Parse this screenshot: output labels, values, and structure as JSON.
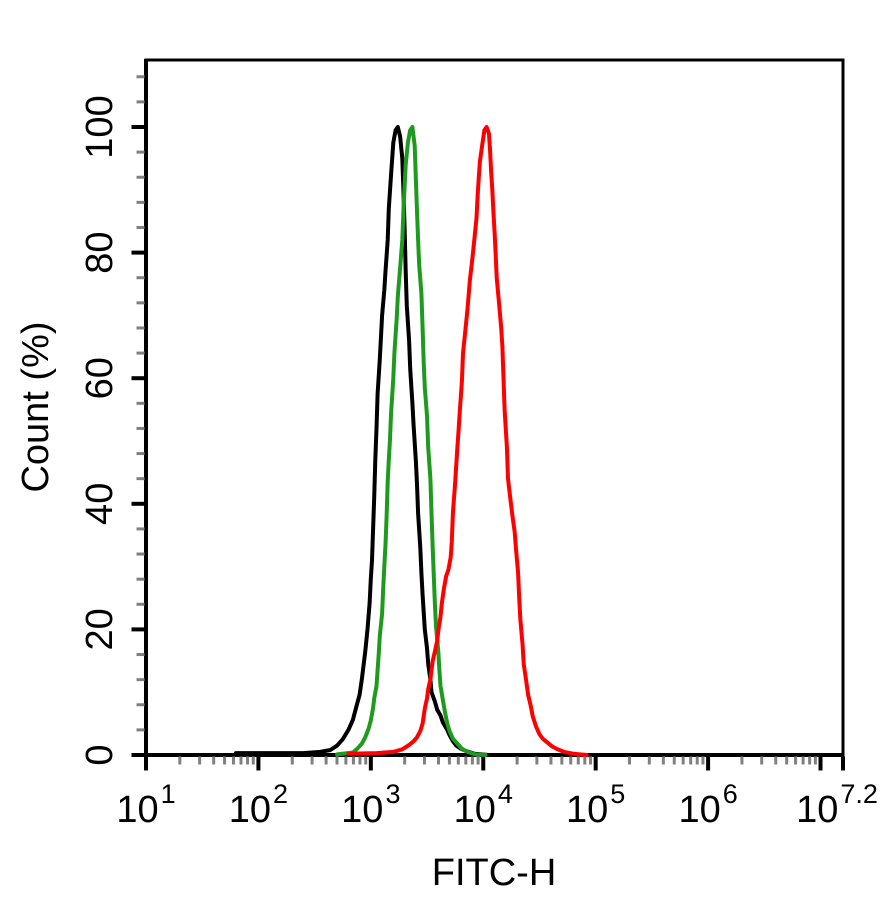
{
  "figure": {
    "background": "#ffffff",
    "frame_color": "#000000",
    "minor_tick_color": "#808080"
  },
  "chart_data": {
    "type": "line",
    "subtype": "flow-cytometry-histogram-overlay",
    "title": "",
    "xlabel": "FITC-H",
    "ylabel": "Count (%)",
    "x_axis": {
      "label": "FITC-H",
      "scale": "log10",
      "min_exp": 1,
      "max_exp": 7.2,
      "tick_base": "10",
      "tick_exponents": [
        "1",
        "2",
        "3",
        "4",
        "5",
        "6",
        "7.2"
      ],
      "minor_ticks": "mantissas 2-9 per decade"
    },
    "y_axis": {
      "label": "Count (%)",
      "min": 0,
      "max": 100,
      "tick_step": 20,
      "tick_labels": [
        "0",
        "20",
        "40",
        "60",
        "80",
        "100"
      ],
      "minor_tick_step": 4
    },
    "legend": "none",
    "grid": false,
    "series": [
      {
        "name": "black",
        "color": "#000000",
        "peak_log10_x": 3.24,
        "peak_percent": 100,
        "points": [
          [
            1.8,
            0.3
          ],
          [
            2.1,
            0.3
          ],
          [
            2.4,
            0.3
          ],
          [
            2.55,
            0.5
          ],
          [
            2.64,
            0.8
          ],
          [
            2.7,
            1.5
          ],
          [
            2.75,
            2.5
          ],
          [
            2.8,
            4.0
          ],
          [
            2.84,
            5.6
          ],
          [
            2.87,
            7.6
          ],
          [
            2.9,
            9.6
          ],
          [
            2.92,
            12.0
          ],
          [
            2.95,
            16.4
          ],
          [
            2.97,
            20.0
          ],
          [
            2.99,
            24.4
          ],
          [
            3.0,
            28.0
          ],
          [
            3.01,
            31.0
          ],
          [
            3.02,
            36.0
          ],
          [
            3.03,
            41.0
          ],
          [
            3.04,
            47.0
          ],
          [
            3.05,
            52.0
          ],
          [
            3.06,
            57.5
          ],
          [
            3.08,
            63.0
          ],
          [
            3.1,
            70.0
          ],
          [
            3.12,
            74.0
          ],
          [
            3.13,
            77.0
          ],
          [
            3.15,
            82.0
          ],
          [
            3.16,
            87.0
          ],
          [
            3.18,
            92.5
          ],
          [
            3.2,
            97.5
          ],
          [
            3.22,
            99.5
          ],
          [
            3.24,
            100.0
          ],
          [
            3.26,
            98.5
          ],
          [
            3.28,
            95.0
          ],
          [
            3.29,
            90.0
          ],
          [
            3.3,
            84.0
          ],
          [
            3.31,
            77.0
          ],
          [
            3.32,
            71.5
          ],
          [
            3.34,
            66.0
          ],
          [
            3.35,
            61.5
          ],
          [
            3.37,
            56.0
          ],
          [
            3.38,
            52.5
          ],
          [
            3.4,
            47.0
          ],
          [
            3.41,
            43.5
          ],
          [
            3.42,
            38.5
          ],
          [
            3.44,
            33.0
          ],
          [
            3.45,
            29.0
          ],
          [
            3.46,
            25.5
          ],
          [
            3.48,
            20.0
          ],
          [
            3.5,
            17.0
          ],
          [
            3.51,
            14.5
          ],
          [
            3.53,
            12.0
          ],
          [
            3.54,
            10.0
          ],
          [
            3.57,
            8.5
          ],
          [
            3.59,
            7.2
          ],
          [
            3.62,
            6.3
          ],
          [
            3.64,
            5.2
          ],
          [
            3.68,
            4.0
          ],
          [
            3.7,
            3.2
          ],
          [
            3.73,
            2.2
          ],
          [
            3.76,
            1.5
          ],
          [
            3.8,
            1.0
          ],
          [
            3.85,
            0.6
          ],
          [
            3.92,
            0.2
          ],
          [
            4.05,
            0.0
          ]
        ]
      },
      {
        "name": "green",
        "color": "#1e9b1e",
        "peak_log10_x": 3.37,
        "peak_percent": 100,
        "points": [
          [
            2.7,
            0.1
          ],
          [
            2.84,
            0.4
          ],
          [
            2.88,
            1.0
          ],
          [
            2.92,
            1.8
          ],
          [
            2.95,
            2.8
          ],
          [
            2.98,
            4.2
          ],
          [
            3.0,
            5.5
          ],
          [
            3.02,
            7.5
          ],
          [
            3.03,
            9.0
          ],
          [
            3.05,
            11.0
          ],
          [
            3.06,
            13.5
          ],
          [
            3.07,
            16.0
          ],
          [
            3.08,
            19.0
          ],
          [
            3.1,
            22.5
          ],
          [
            3.11,
            26.5
          ],
          [
            3.12,
            30.0
          ],
          [
            3.13,
            33.5
          ],
          [
            3.14,
            38.0
          ],
          [
            3.15,
            43.5
          ],
          [
            3.16,
            47.0
          ],
          [
            3.17,
            50.0
          ],
          [
            3.18,
            54.5
          ],
          [
            3.2,
            60.0
          ],
          [
            3.21,
            64.0
          ],
          [
            3.23,
            69.5
          ],
          [
            3.24,
            73.0
          ],
          [
            3.26,
            77.5
          ],
          [
            3.28,
            82.0
          ],
          [
            3.29,
            86.5
          ],
          [
            3.3,
            90.5
          ],
          [
            3.31,
            94.0
          ],
          [
            3.33,
            97.5
          ],
          [
            3.35,
            99.5
          ],
          [
            3.37,
            100.0
          ],
          [
            3.39,
            97.0
          ],
          [
            3.4,
            92.0
          ],
          [
            3.41,
            87.0
          ],
          [
            3.42,
            82.0
          ],
          [
            3.43,
            78.0
          ],
          [
            3.45,
            73.5
          ],
          [
            3.46,
            68.0
          ],
          [
            3.47,
            62.5
          ],
          [
            3.48,
            58.5
          ],
          [
            3.5,
            54.0
          ],
          [
            3.51,
            49.0
          ],
          [
            3.53,
            44.0
          ],
          [
            3.54,
            38.5
          ],
          [
            3.55,
            33.0
          ],
          [
            3.56,
            28.5
          ],
          [
            3.57,
            24.0
          ],
          [
            3.58,
            20.5
          ],
          [
            3.6,
            16.5
          ],
          [
            3.61,
            13.5
          ],
          [
            3.62,
            11.0
          ],
          [
            3.64,
            8.8
          ],
          [
            3.66,
            6.8
          ],
          [
            3.68,
            5.0
          ],
          [
            3.7,
            3.8
          ],
          [
            3.73,
            2.6
          ],
          [
            3.77,
            1.8
          ],
          [
            3.81,
            1.0
          ],
          [
            3.86,
            0.5
          ],
          [
            3.93,
            0.1
          ],
          [
            4.02,
            0.0
          ]
        ]
      },
      {
        "name": "red",
        "color": "#ff0000",
        "peak_log10_x": 4.03,
        "peak_percent": 100,
        "points": [
          [
            2.8,
            0.2
          ],
          [
            3.05,
            0.3
          ],
          [
            3.2,
            0.5
          ],
          [
            3.28,
            0.9
          ],
          [
            3.34,
            1.6
          ],
          [
            3.38,
            2.2
          ],
          [
            3.41,
            2.8
          ],
          [
            3.44,
            3.8
          ],
          [
            3.46,
            5.0
          ],
          [
            3.47,
            6.2
          ],
          [
            3.48,
            7.4
          ],
          [
            3.5,
            9.0
          ],
          [
            3.51,
            10.5
          ],
          [
            3.53,
            12.0
          ],
          [
            3.54,
            13.5
          ],
          [
            3.55,
            15.0
          ],
          [
            3.57,
            16.5
          ],
          [
            3.59,
            18.2
          ],
          [
            3.6,
            19.8
          ],
          [
            3.62,
            22.0
          ],
          [
            3.63,
            24.0
          ],
          [
            3.65,
            26.5
          ],
          [
            3.67,
            28.5
          ],
          [
            3.69,
            29.5
          ],
          [
            3.71,
            31.5
          ],
          [
            3.72,
            34.0
          ],
          [
            3.73,
            38.5
          ],
          [
            3.75,
            43.5
          ],
          [
            3.77,
            49.0
          ],
          [
            3.78,
            51.5
          ],
          [
            3.79,
            54.5
          ],
          [
            3.81,
            59.5
          ],
          [
            3.82,
            64.0
          ],
          [
            3.84,
            67.5
          ],
          [
            3.86,
            71.0
          ],
          [
            3.88,
            75.5
          ],
          [
            3.9,
            78.5
          ],
          [
            3.92,
            82.0
          ],
          [
            3.94,
            85.5
          ],
          [
            3.95,
            89.0
          ],
          [
            3.96,
            92.0
          ],
          [
            3.97,
            94.5
          ],
          [
            3.99,
            97.0
          ],
          [
            4.01,
            99.5
          ],
          [
            4.03,
            100.0
          ],
          [
            4.05,
            99.0
          ],
          [
            4.06,
            96.5
          ],
          [
            4.07,
            93.0
          ],
          [
            4.08,
            90.0
          ],
          [
            4.09,
            86.5
          ],
          [
            4.1,
            83.5
          ],
          [
            4.11,
            80.0
          ],
          [
            4.12,
            76.0
          ],
          [
            4.14,
            72.0
          ],
          [
            4.16,
            68.0
          ],
          [
            4.17,
            65.0
          ],
          [
            4.18,
            60.0
          ],
          [
            4.19,
            55.0
          ],
          [
            4.21,
            49.0
          ],
          [
            4.22,
            44.0
          ],
          [
            4.24,
            41.0
          ],
          [
            4.26,
            38.0
          ],
          [
            4.28,
            35.5
          ],
          [
            4.29,
            33.0
          ],
          [
            4.31,
            29.0
          ],
          [
            4.32,
            25.0
          ],
          [
            4.33,
            21.5
          ],
          [
            4.35,
            17.5
          ],
          [
            4.36,
            14.5
          ],
          [
            4.38,
            12.0
          ],
          [
            4.4,
            9.5
          ],
          [
            4.42,
            8.0
          ],
          [
            4.44,
            6.2
          ],
          [
            4.47,
            4.5
          ],
          [
            4.5,
            3.3
          ],
          [
            4.53,
            2.6
          ],
          [
            4.57,
            2.0
          ],
          [
            4.61,
            1.4
          ],
          [
            4.66,
            0.9
          ],
          [
            4.72,
            0.5
          ],
          [
            4.8,
            0.2
          ],
          [
            4.92,
            0.0
          ]
        ]
      }
    ]
  }
}
